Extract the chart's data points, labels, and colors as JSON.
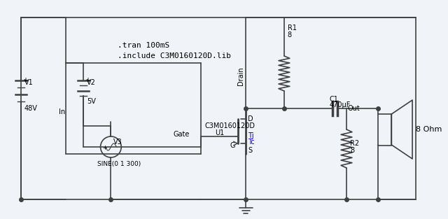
{
  "bg_color": "#f0f4f8",
  "line_color": "#404040",
  "text_color": "#000000",
  "blue_label_color": "#0000cc",
  "title": "",
  "sim_text1": ".tran 100mS",
  "sim_text2": ".include C3M0160120D.lib",
  "v1_label": "V1",
  "v1_val": "48V",
  "v2_label": "V2",
  "v2_val": "5V",
  "v3_label": "V3",
  "v3_sine": "SINE(0 1 300)",
  "r1_label": "R1",
  "r1_val": "8",
  "r2_label": "R2",
  "r2_val": "8",
  "c1_label": "C1",
  "c1_val": "470μF",
  "mosfet_label": "C3M0160120D",
  "u1_label": "U1",
  "drain_label": "Drain",
  "gate_label": "Gate",
  "s_label": "S",
  "g_label": "G",
  "d_label": "D",
  "tj_label": "Tj",
  "tc_label": "Tc",
  "out_label": "Out",
  "ohm_label": "8 Ohm"
}
